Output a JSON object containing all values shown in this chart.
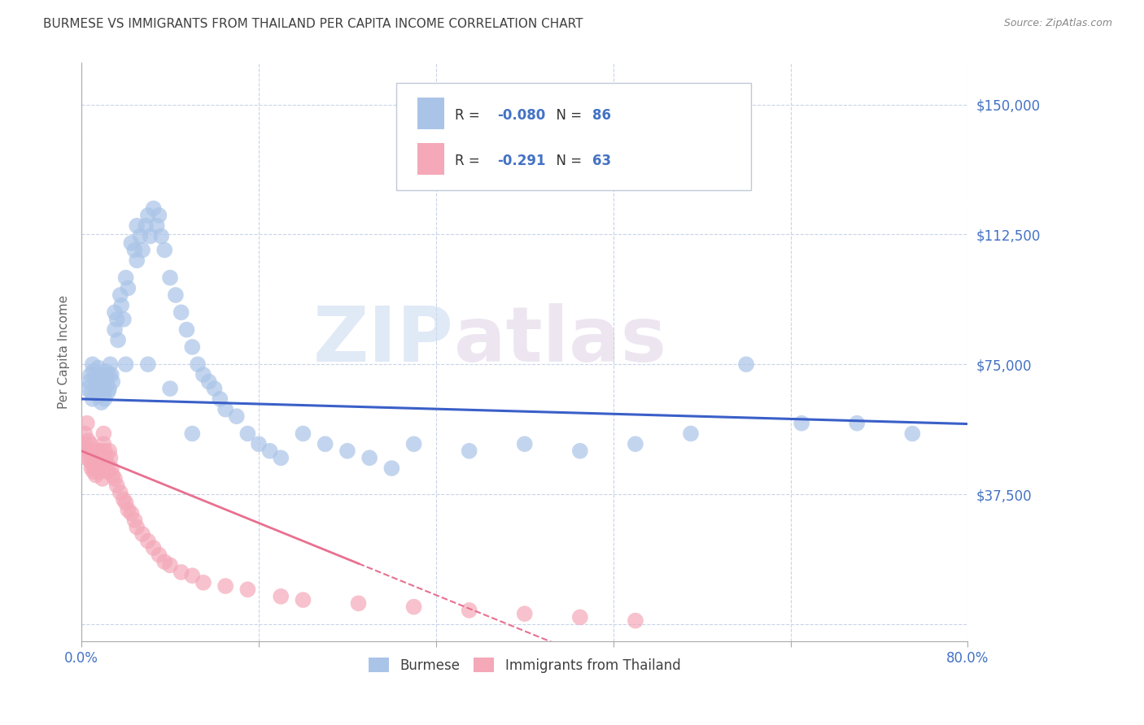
{
  "title": "BURMESE VS IMMIGRANTS FROM THAILAND PER CAPITA INCOME CORRELATION CHART",
  "source": "Source: ZipAtlas.com",
  "ylabel": "Per Capita Income",
  "xlim": [
    0.0,
    0.8
  ],
  "ylim": [
    -5000,
    162000
  ],
  "yticks": [
    0,
    37500,
    75000,
    112500,
    150000
  ],
  "blue_R": -0.08,
  "blue_N": 86,
  "pink_R": -0.291,
  "pink_N": 63,
  "blue_color": "#aac4e8",
  "pink_color": "#f4a8b8",
  "blue_line_color": "#3a5fc8",
  "pink_line_color": "#e87090",
  "title_color": "#404040",
  "source_color": "#888888",
  "axis_label_color": "#4472c4",
  "watermark_zip": "ZIP",
  "watermark_atlas": "atlas",
  "blue_intercept": 65000,
  "blue_slope": -9000,
  "pink_intercept": 50000,
  "pink_slope": -130000,
  "burmese_x": [
    0.005,
    0.007,
    0.008,
    0.009,
    0.01,
    0.01,
    0.011,
    0.012,
    0.013,
    0.014,
    0.015,
    0.015,
    0.016,
    0.017,
    0.018,
    0.019,
    0.02,
    0.02,
    0.021,
    0.022,
    0.022,
    0.023,
    0.024,
    0.025,
    0.025,
    0.026,
    0.027,
    0.028,
    0.03,
    0.03,
    0.032,
    0.033,
    0.035,
    0.036,
    0.038,
    0.04,
    0.042,
    0.045,
    0.048,
    0.05,
    0.05,
    0.053,
    0.055,
    0.058,
    0.06,
    0.062,
    0.065,
    0.068,
    0.07,
    0.072,
    0.075,
    0.08,
    0.085,
    0.09,
    0.095,
    0.1,
    0.105,
    0.11,
    0.115,
    0.12,
    0.125,
    0.13,
    0.14,
    0.15,
    0.16,
    0.17,
    0.18,
    0.2,
    0.22,
    0.24,
    0.26,
    0.28,
    0.3,
    0.35,
    0.4,
    0.45,
    0.5,
    0.55,
    0.6,
    0.65,
    0.7,
    0.75,
    0.04,
    0.06,
    0.08,
    0.1
  ],
  "burmese_y": [
    68000,
    70000,
    72000,
    67000,
    65000,
    75000,
    73000,
    71000,
    68000,
    66000,
    74000,
    70000,
    68000,
    66000,
    64000,
    72000,
    70000,
    67000,
    65000,
    73000,
    71000,
    69000,
    67000,
    72000,
    68000,
    75000,
    72000,
    70000,
    90000,
    85000,
    88000,
    82000,
    95000,
    92000,
    88000,
    100000,
    97000,
    110000,
    108000,
    115000,
    105000,
    112000,
    108000,
    115000,
    118000,
    112000,
    120000,
    115000,
    118000,
    112000,
    108000,
    100000,
    95000,
    90000,
    85000,
    80000,
    75000,
    72000,
    70000,
    68000,
    65000,
    62000,
    60000,
    55000,
    52000,
    50000,
    48000,
    55000,
    52000,
    50000,
    48000,
    45000,
    52000,
    50000,
    52000,
    50000,
    52000,
    55000,
    75000,
    58000,
    58000,
    55000,
    75000,
    75000,
    68000,
    55000
  ],
  "thai_x": [
    0.002,
    0.003,
    0.004,
    0.005,
    0.005,
    0.006,
    0.007,
    0.008,
    0.008,
    0.009,
    0.009,
    0.01,
    0.01,
    0.011,
    0.012,
    0.012,
    0.013,
    0.014,
    0.015,
    0.015,
    0.016,
    0.017,
    0.018,
    0.018,
    0.019,
    0.02,
    0.02,
    0.021,
    0.022,
    0.023,
    0.024,
    0.025,
    0.026,
    0.027,
    0.028,
    0.03,
    0.032,
    0.035,
    0.038,
    0.04,
    0.042,
    0.045,
    0.048,
    0.05,
    0.055,
    0.06,
    0.065,
    0.07,
    0.075,
    0.08,
    0.09,
    0.1,
    0.11,
    0.13,
    0.15,
    0.18,
    0.2,
    0.25,
    0.3,
    0.35,
    0.4,
    0.45,
    0.5
  ],
  "thai_y": [
    52000,
    55000,
    50000,
    48000,
    58000,
    53000,
    50000,
    47000,
    52000,
    48000,
    45000,
    50000,
    46000,
    44000,
    48000,
    45000,
    43000,
    48000,
    50000,
    46000,
    44000,
    50000,
    47000,
    45000,
    42000,
    55000,
    52000,
    50000,
    48000,
    46000,
    44000,
    50000,
    48000,
    45000,
    43000,
    42000,
    40000,
    38000,
    36000,
    35000,
    33000,
    32000,
    30000,
    28000,
    26000,
    24000,
    22000,
    20000,
    18000,
    17000,
    15000,
    14000,
    12000,
    11000,
    10000,
    8000,
    7000,
    6000,
    5000,
    4000,
    3000,
    2000,
    1000
  ]
}
